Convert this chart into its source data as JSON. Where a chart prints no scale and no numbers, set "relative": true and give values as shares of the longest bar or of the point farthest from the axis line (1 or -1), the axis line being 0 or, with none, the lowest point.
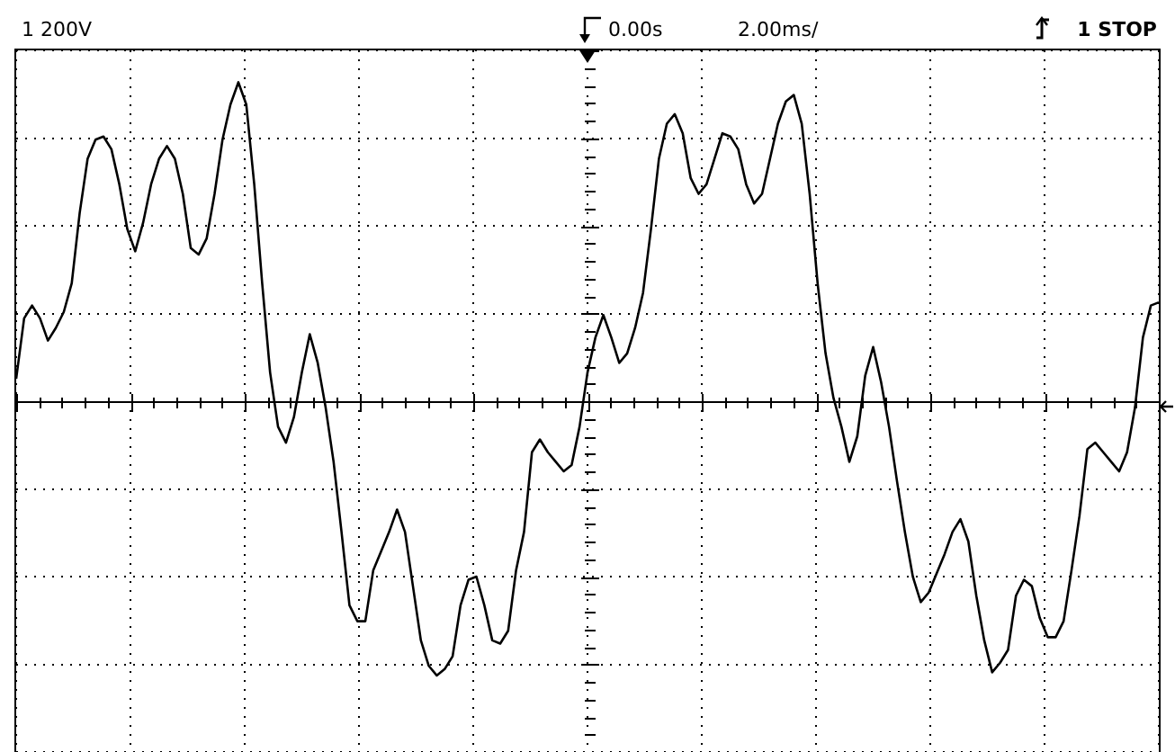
{
  "chart_data": {
    "type": "line",
    "relative": true,
    "grid": true,
    "legend": false,
    "marker": "none",
    "line_style": "solid",
    "annotations": [
      "1 200V",
      "0.00s",
      "2.00ms/",
      "1 STOP"
    ],
    "categories": [
      null,
      null,
      null,
      null,
      null,
      null,
      null,
      null,
      null,
      null,
      null,
      null,
      null,
      null,
      null,
      null,
      null,
      null,
      null,
      null,
      null,
      null,
      null,
      null,
      null,
      null,
      null,
      null,
      null,
      null,
      null,
      null,
      null,
      null,
      null,
      null,
      null,
      null,
      null,
      null,
      null,
      null,
      null,
      null,
      null,
      null,
      null,
      null,
      null,
      null,
      null,
      null,
      null,
      null,
      null,
      null,
      null,
      null,
      null,
      null,
      null,
      null,
      null,
      null,
      null,
      null,
      null,
      null,
      null,
      null,
      null,
      null,
      null,
      null,
      null,
      null,
      null,
      null,
      null,
      null,
      null,
      null,
      null,
      null,
      null,
      null,
      null,
      null,
      null,
      null,
      null,
      null,
      null,
      null,
      null,
      null,
      null,
      null,
      null,
      null,
      null,
      null,
      null,
      null,
      null,
      null,
      null,
      null,
      null,
      null,
      null,
      null,
      null,
      null,
      null,
      null,
      null,
      null,
      null,
      null,
      null,
      null,
      null,
      null,
      null,
      null,
      null,
      null,
      null,
      null,
      null,
      null,
      null,
      null,
      null,
      null,
      null,
      null,
      null,
      null,
      null,
      null,
      null,
      null,
      null
    ],
    "series": [
      {
        "color": "#000000",
        "values": [
          0.07,
          0.26,
          0.3,
          0.26,
          0.19,
          0.23,
          0.28,
          0.37,
          0.59,
          0.76,
          0.82,
          0.83,
          0.79,
          0.68,
          0.54,
          0.47,
          0.56,
          0.68,
          0.76,
          0.8,
          0.76,
          0.65,
          0.48,
          0.46,
          0.51,
          0.65,
          0.82,
          0.93,
          1,
          0.93,
          0.68,
          0.37,
          0.09,
          -0.08,
          -0.13,
          -0.05,
          0.09,
          0.21,
          0.12,
          -0.02,
          -0.19,
          -0.41,
          -0.64,
          -0.69,
          -0.69,
          -0.53,
          -0.47,
          -0.41,
          -0.34,
          -0.41,
          -0.58,
          -0.75,
          -0.83,
          -0.86,
          -0.84,
          -0.8,
          -0.64,
          -0.56,
          -0.55,
          -0.64,
          -0.75,
          -0.76,
          -0.72,
          -0.53,
          -0.41,
          -0.16,
          -0.12,
          -0.16,
          -0.19,
          -0.22,
          -0.2,
          -0.08,
          0.09,
          0.2,
          0.27,
          0.2,
          0.12,
          0.15,
          0.23,
          0.34,
          0.54,
          0.76,
          0.87,
          0.9,
          0.84,
          0.7,
          0.65,
          0.68,
          0.76,
          0.84,
          0.83,
          0.79,
          0.68,
          0.62,
          0.65,
          0.76,
          0.87,
          0.94,
          0.96,
          0.87,
          0.65,
          0.37,
          0.15,
          0.01,
          -0.08,
          -0.19,
          -0.11,
          0.08,
          0.17,
          0.06,
          -0.08,
          -0.25,
          -0.41,
          -0.55,
          -0.63,
          -0.6,
          -0.54,
          -0.48,
          -0.41,
          -0.37,
          -0.44,
          -0.61,
          -0.75,
          -0.85,
          -0.82,
          -0.78,
          -0.61,
          -0.56,
          -0.58,
          -0.68,
          -0.74,
          -0.74,
          -0.69,
          -0.53,
          -0.36,
          -0.15,
          -0.13,
          -0.16,
          -0.19,
          -0.22,
          -0.16,
          -0.02,
          0.2,
          0.3,
          0.31
        ]
      }
    ]
  }
}
